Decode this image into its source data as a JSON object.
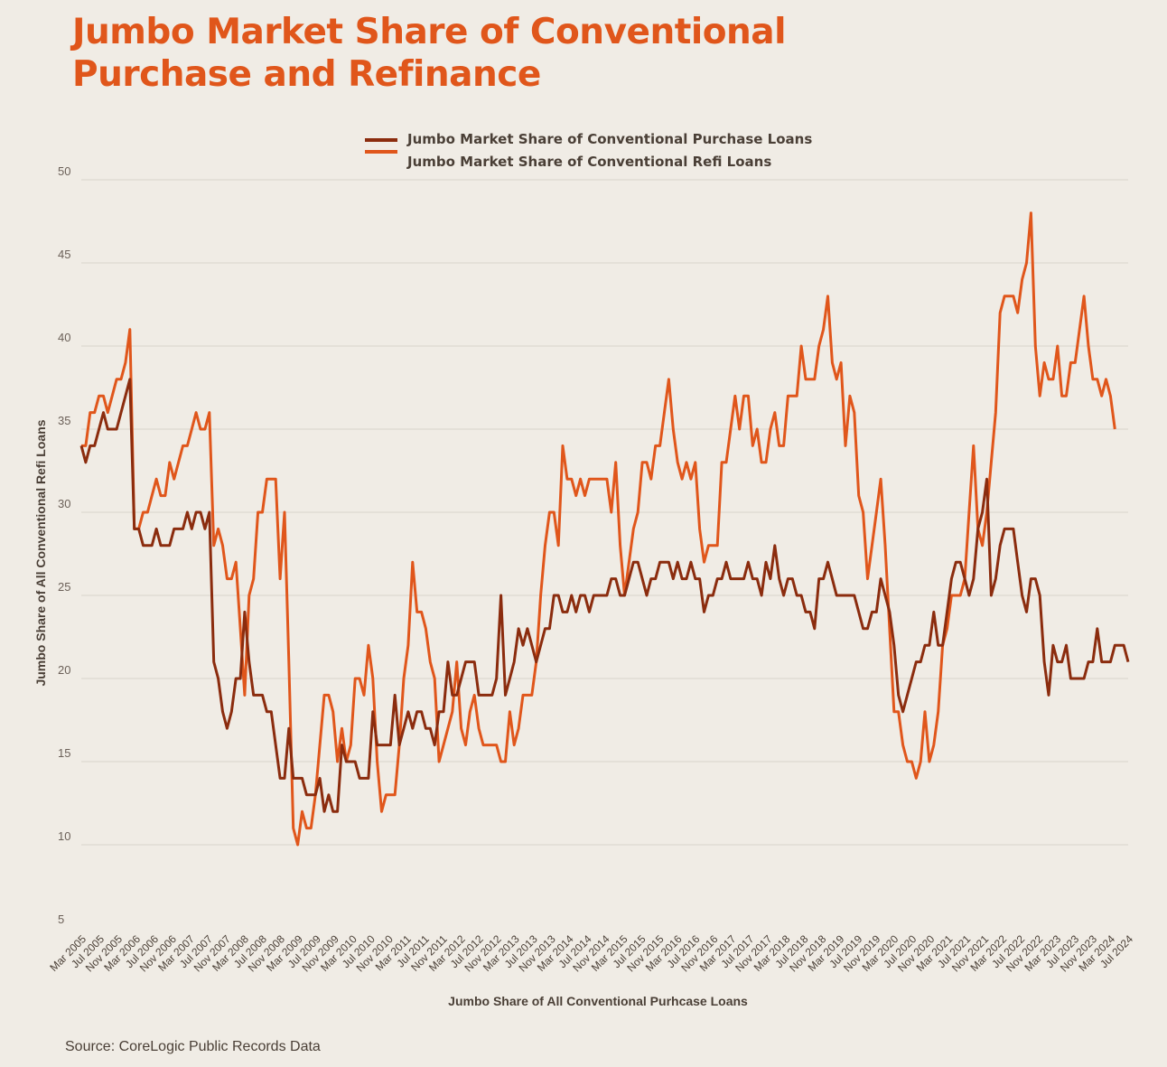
{
  "title": "Jumbo Market Share of Conventional Purchase and Refinance",
  "source": "Source: CoreLogic Public Records Data",
  "colors": {
    "purchase": "#8b2c0e",
    "refi": "#e0561b",
    "grid": "#d9d3ca",
    "text": "#4a3f36"
  },
  "chart_data": {
    "type": "line",
    "title": "Jumbo Market Share of Conventional Purchase and Refinance",
    "xlabel": "Jumbo Share of All Conventional Purhcase Loans",
    "ylabel": "Jumbo Share of All Conventional Refi Loans",
    "ylim": [
      5,
      50
    ],
    "yticks": [
      5,
      10,
      15,
      20,
      25,
      30,
      35,
      40,
      45,
      50
    ],
    "grid": true,
    "legend_position": "top-center",
    "x_start": "Mar 2005",
    "x_end": "Jul 2024",
    "frequency": "monthly",
    "tick_labels": [
      "Mar 2005",
      "Jul 2005",
      "Nov 2005",
      "Mar 2006",
      "Jul 2006",
      "Nov 2006",
      "Mar 2007",
      "Jul 2007",
      "Nov 2007",
      "Mar 2008",
      "Jul 2008",
      "Nov 2008",
      "Mar 2009",
      "Jul 2009",
      "Nov 2009",
      "Mar 2010",
      "Jul 2010",
      "Nov 2010",
      "Mar 2011",
      "Jul 2011",
      "Nov 2011",
      "Mar 2012",
      "Jul 2012",
      "Nov 2012",
      "Mar 2013",
      "Jul 2013",
      "Nov 2013",
      "Mar 2014",
      "Jul 2014",
      "Nov 2014",
      "Mar 2015",
      "Jul 2015",
      "Nov 2015",
      "Mar 2016",
      "Jul 2016",
      "Nov 2016",
      "Mar 2017",
      "Jul 2017",
      "Nov 2017",
      "Mar 2018",
      "Jul 2018",
      "Nov 2018",
      "Mar 2019",
      "Jul 2019",
      "Nov 2019",
      "Mar 2020",
      "Jul 2020",
      "Nov 2020",
      "Mar 2021",
      "Jul 2021",
      "Nov 2021",
      "Mar 2022",
      "Jul 2022",
      "Nov 2022",
      "Mar 2023",
      "Jul 2023",
      "Nov 2023",
      "Mar 2024",
      "Jul 2024"
    ],
    "series": [
      {
        "name": "Jumbo Market Share of Conventional Purchase Loans",
        "values": [
          34,
          33,
          34,
          34,
          35,
          36,
          35,
          35,
          35,
          36,
          37,
          38,
          29,
          29,
          28,
          28,
          28,
          29,
          28,
          28,
          28,
          29,
          29,
          29,
          30,
          29,
          30,
          30,
          29,
          30,
          21,
          20,
          18,
          17,
          18,
          20,
          20,
          24,
          21,
          19,
          19,
          19,
          18,
          18,
          16,
          14,
          14,
          17,
          14,
          14,
          14,
          13,
          13,
          13,
          14,
          12,
          13,
          12,
          12,
          16,
          15,
          15,
          15,
          14,
          14,
          14,
          18,
          16,
          16,
          16,
          16,
          19,
          16,
          17,
          18,
          17,
          18,
          18,
          17,
          17,
          16,
          18,
          18,
          21,
          19,
          19,
          20,
          21,
          21,
          21,
          19,
          19,
          19,
          19,
          20,
          25,
          19,
          20,
          21,
          23,
          22,
          23,
          22,
          21,
          22,
          23,
          23,
          25,
          25,
          24,
          24,
          25,
          24,
          25,
          25,
          24,
          25,
          25,
          25,
          25,
          26,
          26,
          25,
          25,
          26,
          27,
          27,
          26,
          25,
          26,
          26,
          27,
          27,
          27,
          26,
          27,
          26,
          26,
          27,
          26,
          26,
          24,
          25,
          25,
          26,
          26,
          27,
          26,
          26,
          26,
          26,
          27,
          26,
          26,
          25,
          27,
          26,
          28,
          26,
          25,
          26,
          26,
          25,
          25,
          24,
          24,
          23,
          26,
          26,
          27,
          26,
          25,
          25,
          25,
          25,
          25,
          24,
          23,
          23,
          24,
          24,
          26,
          25,
          24,
          22,
          19,
          18,
          19,
          20,
          21,
          21,
          22,
          22,
          24,
          22,
          22,
          24,
          26,
          27,
          27,
          26,
          25,
          26,
          29,
          30,
          32,
          25,
          26,
          28,
          29,
          29,
          29,
          27,
          25,
          24,
          26,
          26,
          25,
          21,
          19,
          22,
          21,
          21,
          22,
          20,
          20,
          20,
          20,
          21,
          21,
          23,
          21,
          21,
          21,
          22,
          22,
          22,
          21
        ]
      },
      {
        "name": "Jumbo Market Share of Conventional Refi Loans",
        "values": [
          34,
          34,
          36,
          36,
          37,
          37,
          36,
          37,
          38,
          38,
          39,
          41,
          29,
          29,
          30,
          30,
          31,
          32,
          31,
          31,
          33,
          32,
          33,
          34,
          34,
          35,
          36,
          35,
          35,
          36,
          28,
          29,
          28,
          26,
          26,
          27,
          23,
          19,
          25,
          26,
          30,
          30,
          32,
          32,
          32,
          26,
          30,
          21,
          11,
          10,
          12,
          11,
          11,
          13,
          16,
          19,
          19,
          18,
          15,
          17,
          15,
          16,
          20,
          20,
          19,
          22,
          20,
          15,
          12,
          13,
          13,
          13,
          16,
          20,
          22,
          27,
          24,
          24,
          23,
          21,
          20,
          15,
          16,
          17,
          18,
          21,
          17,
          16,
          18,
          19,
          17,
          16,
          16,
          16,
          16,
          15,
          15,
          18,
          16,
          17,
          19,
          19,
          19,
          21,
          25,
          28,
          30,
          30,
          28,
          34,
          32,
          32,
          31,
          32,
          31,
          32,
          32,
          32,
          32,
          32,
          30,
          33,
          28,
          25,
          27,
          29,
          30,
          33,
          33,
          32,
          34,
          34,
          36,
          38,
          35,
          33,
          32,
          33,
          32,
          33,
          29,
          27,
          28,
          28,
          28,
          33,
          33,
          35,
          37,
          35,
          37,
          37,
          34,
          35,
          33,
          33,
          35,
          36,
          34,
          34,
          37,
          37,
          37,
          40,
          38,
          38,
          38,
          40,
          41,
          43,
          39,
          38,
          39,
          34,
          37,
          36,
          31,
          30,
          26,
          28,
          30,
          32,
          28,
          23,
          18,
          18,
          16,
          15,
          15,
          14,
          15,
          18,
          15,
          16,
          18,
          22,
          23,
          25,
          25,
          25,
          26,
          30,
          34,
          29,
          28,
          30,
          33,
          36,
          42,
          43,
          43,
          43,
          42,
          44,
          45,
          48,
          40,
          37,
          39,
          38,
          38,
          40,
          37,
          37,
          39,
          39,
          41,
          43,
          40,
          38,
          38,
          37,
          38,
          37,
          35
        ]
      }
    ]
  }
}
